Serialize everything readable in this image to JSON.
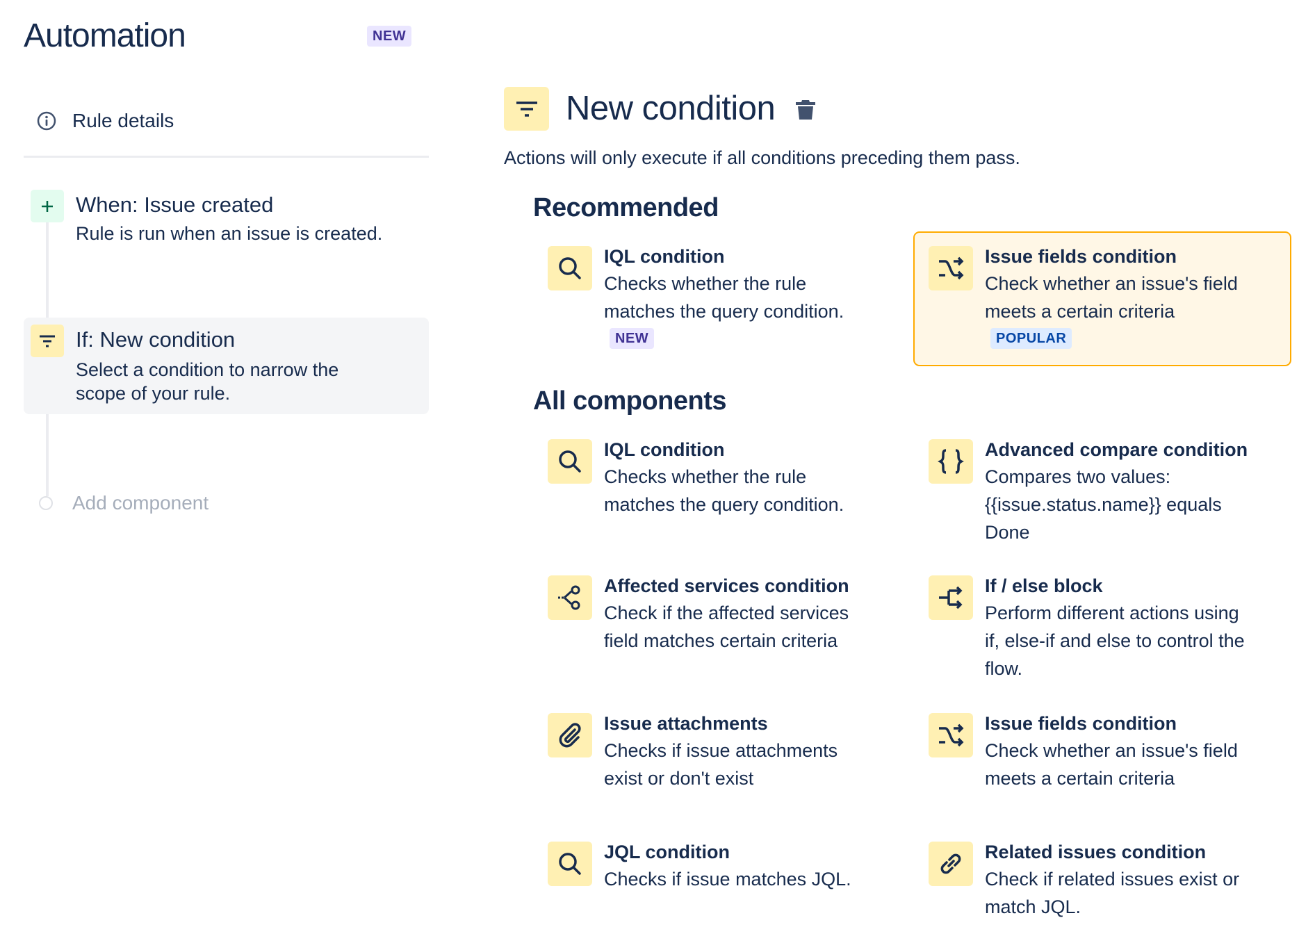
{
  "sidebar": {
    "title": "Automation",
    "title_badge": "NEW",
    "rule_details": "Rule details",
    "steps": [
      {
        "title": "When: Issue created",
        "desc": "Rule is run when an issue is created.",
        "icon": "plus-icon",
        "color": "#006644",
        "bg": "#E3FCEF"
      },
      {
        "title": "If: New condition",
        "desc_lines": [
          "Select a condition to narrow the",
          "scope of your rule."
        ],
        "icon": "filter-icon",
        "bg": "#FFF0B3"
      }
    ],
    "add_component": "Add component"
  },
  "main": {
    "title": "New condition",
    "subtitle": "Actions will only execute if all conditions preceding them pass.",
    "recommended_heading": "Recommended",
    "recommended": [
      {
        "title": "IQL condition",
        "desc": [
          "Checks whether the rule",
          "matches the query condition."
        ],
        "badge": "NEW",
        "icon": "search-icon"
      },
      {
        "title": "Issue fields condition",
        "desc": [
          "Check whether an issue's field",
          "meets a certain criteria"
        ],
        "badge": "POPULAR",
        "icon": "shuffle-icon",
        "selected": true
      }
    ],
    "all_heading": "All components",
    "all": [
      {
        "title": "IQL condition",
        "desc": [
          "Checks whether the rule",
          "matches the query condition."
        ],
        "icon": "search-icon"
      },
      {
        "title": "Advanced compare condition",
        "desc": [
          "Compares two values:",
          "{{issue.status.name}} equals",
          "Done"
        ],
        "icon": "braces-icon"
      },
      {
        "title": "Affected services condition",
        "desc": [
          "Check if the affected services",
          "field matches certain criteria"
        ],
        "icon": "services-icon"
      },
      {
        "title": "If / else block",
        "desc": [
          "Perform different actions using",
          "if, else-if and else to control the",
          "flow."
        ],
        "icon": "branch-icon"
      },
      {
        "title": "Issue attachments",
        "desc": [
          "Checks if issue attachments",
          "exist or don't exist"
        ],
        "icon": "paperclip-icon"
      },
      {
        "title": "Issue fields condition",
        "desc": [
          "Check whether an issue's field",
          "meets a certain criteria"
        ],
        "icon": "shuffle-icon"
      },
      {
        "title": "JQL condition",
        "desc": [
          "Checks if issue matches JQL."
        ],
        "icon": "search-icon"
      },
      {
        "title": "Related issues condition",
        "desc": [
          "Check if related issues exist or",
          "match JQL."
        ],
        "icon": "link-icon"
      }
    ]
  },
  "colors": {
    "text": "#172B4D",
    "icon_bg": "#FFF0B3",
    "selected_border": "#FFAB00",
    "selected_bg": "#FFF7E6"
  }
}
